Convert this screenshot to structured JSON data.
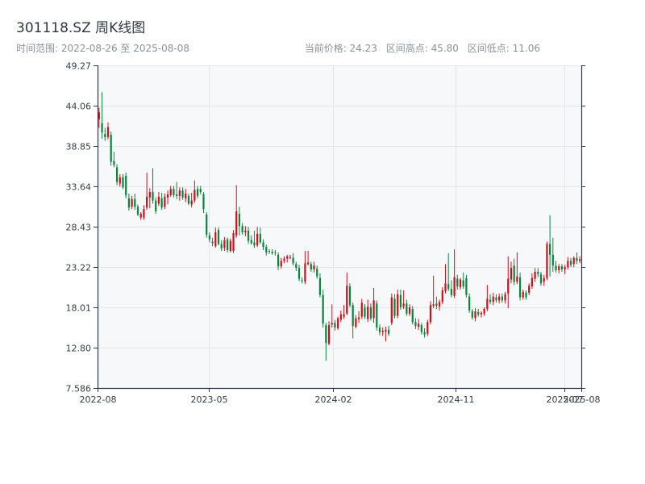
{
  "header": {
    "title": "301118.SZ 周K线图",
    "date_range": "时间范围: 2022-08-26 至 2025-08-08",
    "current_price": "当前价格: 24.23",
    "range_high": "区间高点: 45.80",
    "range_low": "区间低点: 11.06"
  },
  "colors": {
    "up": "#d10f1a",
    "down": "#07873c",
    "plot_bg": "#f7f8fa",
    "grid": "#e3e6ea",
    "axis": "#2b3a4a"
  },
  "chart_data": {
    "type": "candlestick",
    "title": "301118.SZ 周K线图",
    "x_range": [
      "2022-08-26",
      "2025-08-08"
    ],
    "ylim": [
      7.586,
      49.27
    ],
    "y_ticks": [
      "49.27",
      "44.06",
      "38.85",
      "33.64",
      "28.43",
      "23.22",
      "18.01",
      "12.80",
      "7.586"
    ],
    "y_tick_values": [
      49.27,
      44.06,
      38.85,
      33.64,
      28.43,
      23.22,
      18.01,
      12.8,
      7.586
    ],
    "x_ticks": [
      {
        "label": "2022-08",
        "date": "2022-08-26"
      },
      {
        "label": "2023-05",
        "date": "2023-05-01"
      },
      {
        "label": "2024-02",
        "date": "2024-02-01"
      },
      {
        "label": "2024-11",
        "date": "2024-11-01"
      },
      {
        "label": "2025-07",
        "date": "2025-07-01"
      },
      {
        "label": "2025-08",
        "date": "2025-08-08"
      }
    ],
    "grid": true,
    "weeks": [
      {
        "o": 42.3,
        "h": 43.8,
        "l": 41.2,
        "c": 43.2
      },
      {
        "o": 41.8,
        "h": 45.8,
        "l": 39.8,
        "c": 40.6
      },
      {
        "o": 40.4,
        "h": 41.2,
        "l": 39.5,
        "c": 40.0
      },
      {
        "o": 40.0,
        "h": 41.9,
        "l": 39.7,
        "c": 41.3
      },
      {
        "o": 40.3,
        "h": 40.7,
        "l": 36.3,
        "c": 36.8
      },
      {
        "o": 36.9,
        "h": 38.1,
        "l": 36.1,
        "c": 36.4
      },
      {
        "o": 36.1,
        "h": 36.5,
        "l": 33.8,
        "c": 34.2
      },
      {
        "o": 34.0,
        "h": 35.2,
        "l": 33.6,
        "c": 34.8
      },
      {
        "o": 34.8,
        "h": 35.2,
        "l": 33.3,
        "c": 33.5
      },
      {
        "o": 35.0,
        "h": 35.4,
        "l": 32.1,
        "c": 32.5
      },
      {
        "o": 32.1,
        "h": 32.7,
        "l": 30.5,
        "c": 30.9
      },
      {
        "o": 31.0,
        "h": 32.4,
        "l": 30.7,
        "c": 32.0
      },
      {
        "o": 32.0,
        "h": 32.7,
        "l": 30.6,
        "c": 31.0
      },
      {
        "o": 31.0,
        "h": 31.3,
        "l": 29.8,
        "c": 30.0
      },
      {
        "o": 29.6,
        "h": 30.3,
        "l": 29.3,
        "c": 30.1
      },
      {
        "o": 29.6,
        "h": 31.2,
        "l": 29.3,
        "c": 30.7
      },
      {
        "o": 30.9,
        "h": 35.4,
        "l": 30.6,
        "c": 32.3
      },
      {
        "o": 32.2,
        "h": 33.4,
        "l": 30.8,
        "c": 32.9
      },
      {
        "o": 32.9,
        "h": 36.0,
        "l": 31.4,
        "c": 31.8
      },
      {
        "o": 31.8,
        "h": 32.2,
        "l": 30.1,
        "c": 30.4
      },
      {
        "o": 31.4,
        "h": 32.9,
        "l": 31.1,
        "c": 32.3
      },
      {
        "o": 32.1,
        "h": 32.8,
        "l": 30.6,
        "c": 30.9
      },
      {
        "o": 31.0,
        "h": 32.7,
        "l": 30.7,
        "c": 32.3
      },
      {
        "o": 32.2,
        "h": 33.1,
        "l": 31.3,
        "c": 32.6
      },
      {
        "o": 32.5,
        "h": 33.7,
        "l": 32.3,
        "c": 33.3
      },
      {
        "o": 33.3,
        "h": 33.7,
        "l": 32.2,
        "c": 32.5
      },
      {
        "o": 32.6,
        "h": 34.2,
        "l": 32.0,
        "c": 32.4
      },
      {
        "o": 32.4,
        "h": 33.5,
        "l": 31.8,
        "c": 33.1
      },
      {
        "o": 33.1,
        "h": 33.5,
        "l": 31.9,
        "c": 32.2
      },
      {
        "o": 32.1,
        "h": 33.3,
        "l": 31.6,
        "c": 32.7
      },
      {
        "o": 32.4,
        "h": 32.7,
        "l": 31.2,
        "c": 31.4
      },
      {
        "o": 31.3,
        "h": 32.8,
        "l": 30.9,
        "c": 31.8
      },
      {
        "o": 31.8,
        "h": 34.4,
        "l": 31.5,
        "c": 33.2
      },
      {
        "o": 33.3,
        "h": 33.7,
        "l": 32.1,
        "c": 32.4
      },
      {
        "o": 33.3,
        "h": 33.7,
        "l": 32.6,
        "c": 32.9
      },
      {
        "o": 32.6,
        "h": 32.9,
        "l": 30.2,
        "c": 30.7
      },
      {
        "o": 30.0,
        "h": 30.3,
        "l": 27.0,
        "c": 27.4
      },
      {
        "o": 27.3,
        "h": 27.7,
        "l": 26.4,
        "c": 26.8
      },
      {
        "o": 26.5,
        "h": 27.0,
        "l": 25.9,
        "c": 26.3
      },
      {
        "o": 25.9,
        "h": 28.3,
        "l": 25.7,
        "c": 27.7
      },
      {
        "o": 28.0,
        "h": 28.3,
        "l": 26.0,
        "c": 26.2
      },
      {
        "o": 26.2,
        "h": 26.7,
        "l": 25.3,
        "c": 25.6
      },
      {
        "o": 25.7,
        "h": 27.1,
        "l": 25.3,
        "c": 26.7
      },
      {
        "o": 26.8,
        "h": 27.0,
        "l": 25.1,
        "c": 25.4
      },
      {
        "o": 25.3,
        "h": 26.9,
        "l": 25.1,
        "c": 26.6
      },
      {
        "o": 25.3,
        "h": 28.0,
        "l": 25.0,
        "c": 27.6
      },
      {
        "o": 27.3,
        "h": 33.8,
        "l": 27.0,
        "c": 30.4
      },
      {
        "o": 30.1,
        "h": 31.0,
        "l": 27.3,
        "c": 28.5
      },
      {
        "o": 28.5,
        "h": 28.9,
        "l": 27.4,
        "c": 27.7
      },
      {
        "o": 27.7,
        "h": 28.5,
        "l": 27.2,
        "c": 27.9
      },
      {
        "o": 27.9,
        "h": 28.4,
        "l": 26.2,
        "c": 26.6
      },
      {
        "o": 26.7,
        "h": 27.3,
        "l": 26.1,
        "c": 26.3
      },
      {
        "o": 26.4,
        "h": 27.9,
        "l": 25.7,
        "c": 26.0
      },
      {
        "o": 26.0,
        "h": 28.4,
        "l": 25.8,
        "c": 27.5
      },
      {
        "o": 27.5,
        "h": 28.3,
        "l": 26.2,
        "c": 26.4
      },
      {
        "o": 26.4,
        "h": 26.8,
        "l": 25.4,
        "c": 25.8
      },
      {
        "o": 25.8,
        "h": 26.1,
        "l": 24.7,
        "c": 25.1
      },
      {
        "o": 25.3,
        "h": 25.5,
        "l": 24.9,
        "c": 25.2
      },
      {
        "o": 25.2,
        "h": 25.5,
        "l": 24.8,
        "c": 25.0
      },
      {
        "o": 25.1,
        "h": 25.4,
        "l": 24.7,
        "c": 25.0
      },
      {
        "o": 24.8,
        "h": 25.1,
        "l": 22.8,
        "c": 23.3
      },
      {
        "o": 23.3,
        "h": 24.4,
        "l": 23.0,
        "c": 24.0
      },
      {
        "o": 24.0,
        "h": 24.6,
        "l": 23.7,
        "c": 24.3
      },
      {
        "o": 24.3,
        "h": 24.8,
        "l": 23.8,
        "c": 24.6
      },
      {
        "o": 24.5,
        "h": 24.8,
        "l": 24.2,
        "c": 24.5
      },
      {
        "o": 24.4,
        "h": 25.0,
        "l": 23.4,
        "c": 23.7
      },
      {
        "o": 23.6,
        "h": 23.9,
        "l": 22.7,
        "c": 23.1
      },
      {
        "o": 23.1,
        "h": 23.5,
        "l": 21.4,
        "c": 21.7
      },
      {
        "o": 21.5,
        "h": 21.9,
        "l": 21.1,
        "c": 21.4
      },
      {
        "o": 21.3,
        "h": 25.3,
        "l": 21.0,
        "c": 23.7
      },
      {
        "o": 23.6,
        "h": 25.3,
        "l": 23.4,
        "c": 23.8
      },
      {
        "o": 23.6,
        "h": 23.9,
        "l": 22.6,
        "c": 22.9
      },
      {
        "o": 22.9,
        "h": 23.9,
        "l": 22.5,
        "c": 23.4
      },
      {
        "o": 23.0,
        "h": 23.4,
        "l": 21.7,
        "c": 22.0
      },
      {
        "o": 21.8,
        "h": 22.4,
        "l": 19.3,
        "c": 19.6
      },
      {
        "o": 19.6,
        "h": 20.3,
        "l": 15.4,
        "c": 15.9
      },
      {
        "o": 15.7,
        "h": 16.0,
        "l": 11.1,
        "c": 13.4
      },
      {
        "o": 13.3,
        "h": 16.2,
        "l": 13.1,
        "c": 15.7
      },
      {
        "o": 15.8,
        "h": 18.4,
        "l": 15.4,
        "c": 16.0
      },
      {
        "o": 16.0,
        "h": 16.4,
        "l": 15.0,
        "c": 15.4
      },
      {
        "o": 15.3,
        "h": 16.8,
        "l": 15.1,
        "c": 16.6
      },
      {
        "o": 16.4,
        "h": 17.6,
        "l": 16.1,
        "c": 17.1
      },
      {
        "o": 16.8,
        "h": 18.3,
        "l": 16.5,
        "c": 17.1
      },
      {
        "o": 17.2,
        "h": 22.5,
        "l": 17.0,
        "c": 20.8
      },
      {
        "o": 20.7,
        "h": 21.1,
        "l": 18.0,
        "c": 18.3
      },
      {
        "o": 18.3,
        "h": 18.6,
        "l": 14.0,
        "c": 15.6
      },
      {
        "o": 15.5,
        "h": 17.0,
        "l": 15.3,
        "c": 16.6
      },
      {
        "o": 16.5,
        "h": 17.5,
        "l": 16.0,
        "c": 16.7
      },
      {
        "o": 16.8,
        "h": 19.1,
        "l": 16.5,
        "c": 18.6
      },
      {
        "o": 18.0,
        "h": 18.4,
        "l": 16.5,
        "c": 16.8
      },
      {
        "o": 16.5,
        "h": 19.0,
        "l": 16.1,
        "c": 18.1
      },
      {
        "o": 18.0,
        "h": 18.5,
        "l": 16.3,
        "c": 16.6
      },
      {
        "o": 16.6,
        "h": 20.5,
        "l": 16.0,
        "c": 18.9
      },
      {
        "o": 18.5,
        "h": 18.9,
        "l": 15.0,
        "c": 15.4
      },
      {
        "o": 15.4,
        "h": 15.8,
        "l": 14.4,
        "c": 14.8
      },
      {
        "o": 14.8,
        "h": 15.4,
        "l": 14.3,
        "c": 15.0
      },
      {
        "o": 14.9,
        "h": 15.5,
        "l": 13.6,
        "c": 15.1
      },
      {
        "o": 15.1,
        "h": 15.6,
        "l": 14.3,
        "c": 14.6
      },
      {
        "o": 16.0,
        "h": 19.8,
        "l": 15.7,
        "c": 19.3
      },
      {
        "o": 19.1,
        "h": 19.7,
        "l": 16.6,
        "c": 16.9
      },
      {
        "o": 16.9,
        "h": 20.3,
        "l": 16.6,
        "c": 19.7
      },
      {
        "o": 19.6,
        "h": 20.3,
        "l": 17.7,
        "c": 18.0
      },
      {
        "o": 18.1,
        "h": 20.2,
        "l": 17.8,
        "c": 18.5
      },
      {
        "o": 18.5,
        "h": 19.0,
        "l": 16.9,
        "c": 17.2
      },
      {
        "o": 17.2,
        "h": 18.4,
        "l": 16.9,
        "c": 18.0
      },
      {
        "o": 17.8,
        "h": 18.2,
        "l": 15.8,
        "c": 16.1
      },
      {
        "o": 16.1,
        "h": 16.6,
        "l": 15.2,
        "c": 15.6
      },
      {
        "o": 15.5,
        "h": 16.5,
        "l": 15.1,
        "c": 15.9
      },
      {
        "o": 15.7,
        "h": 16.0,
        "l": 14.5,
        "c": 14.8
      },
      {
        "o": 14.8,
        "h": 15.3,
        "l": 14.1,
        "c": 14.5
      },
      {
        "o": 14.6,
        "h": 16.4,
        "l": 14.3,
        "c": 16.1
      },
      {
        "o": 16.1,
        "h": 18.8,
        "l": 15.8,
        "c": 18.3
      },
      {
        "o": 18.2,
        "h": 22.1,
        "l": 17.9,
        "c": 18.4
      },
      {
        "o": 18.5,
        "h": 19.4,
        "l": 17.8,
        "c": 18.2
      },
      {
        "o": 18.1,
        "h": 19.0,
        "l": 17.6,
        "c": 18.7
      },
      {
        "o": 18.7,
        "h": 20.6,
        "l": 18.4,
        "c": 20.2
      },
      {
        "o": 20.1,
        "h": 23.6,
        "l": 19.8,
        "c": 21.1
      },
      {
        "o": 21.0,
        "h": 25.0,
        "l": 20.1,
        "c": 20.4
      },
      {
        "o": 20.4,
        "h": 21.5,
        "l": 19.3,
        "c": 19.6
      },
      {
        "o": 19.5,
        "h": 25.5,
        "l": 19.2,
        "c": 21.9
      },
      {
        "o": 21.7,
        "h": 22.2,
        "l": 20.3,
        "c": 20.7
      },
      {
        "o": 20.6,
        "h": 21.8,
        "l": 20.3,
        "c": 21.6
      },
      {
        "o": 21.5,
        "h": 22.5,
        "l": 20.4,
        "c": 20.7
      },
      {
        "o": 21.8,
        "h": 22.2,
        "l": 19.3,
        "c": 19.6
      },
      {
        "o": 19.4,
        "h": 19.8,
        "l": 17.3,
        "c": 17.6
      },
      {
        "o": 17.5,
        "h": 17.8,
        "l": 16.4,
        "c": 16.7
      },
      {
        "o": 16.6,
        "h": 17.9,
        "l": 16.2,
        "c": 17.5
      },
      {
        "o": 17.4,
        "h": 17.8,
        "l": 16.8,
        "c": 17.1
      },
      {
        "o": 17.1,
        "h": 17.5,
        "l": 16.7,
        "c": 17.3
      },
      {
        "o": 17.2,
        "h": 18.0,
        "l": 16.9,
        "c": 17.8
      },
      {
        "o": 17.8,
        "h": 20.9,
        "l": 17.5,
        "c": 19.1
      },
      {
        "o": 19.0,
        "h": 19.7,
        "l": 18.4,
        "c": 18.7
      },
      {
        "o": 18.7,
        "h": 19.9,
        "l": 18.3,
        "c": 19.4
      },
      {
        "o": 19.3,
        "h": 19.7,
        "l": 18.6,
        "c": 18.9
      },
      {
        "o": 18.9,
        "h": 19.8,
        "l": 18.5,
        "c": 19.4
      },
      {
        "o": 19.4,
        "h": 19.8,
        "l": 18.6,
        "c": 18.9
      },
      {
        "o": 18.9,
        "h": 20.0,
        "l": 18.5,
        "c": 19.7
      },
      {
        "o": 19.8,
        "h": 24.6,
        "l": 17.9,
        "c": 21.7
      },
      {
        "o": 21.6,
        "h": 23.9,
        "l": 21.1,
        "c": 23.1
      },
      {
        "o": 23.4,
        "h": 24.3,
        "l": 20.9,
        "c": 21.3
      },
      {
        "o": 21.3,
        "h": 25.1,
        "l": 21.0,
        "c": 22.0
      },
      {
        "o": 21.9,
        "h": 22.5,
        "l": 18.9,
        "c": 19.3
      },
      {
        "o": 19.3,
        "h": 20.3,
        "l": 19.0,
        "c": 20.0
      },
      {
        "o": 19.9,
        "h": 20.2,
        "l": 19.0,
        "c": 19.3
      },
      {
        "o": 19.9,
        "h": 21.1,
        "l": 19.6,
        "c": 20.8
      },
      {
        "o": 20.7,
        "h": 22.4,
        "l": 20.4,
        "c": 21.8
      },
      {
        "o": 21.7,
        "h": 23.1,
        "l": 21.3,
        "c": 22.6
      },
      {
        "o": 22.6,
        "h": 23.1,
        "l": 21.9,
        "c": 22.3
      },
      {
        "o": 22.3,
        "h": 22.6,
        "l": 20.8,
        "c": 21.1
      },
      {
        "o": 21.3,
        "h": 22.2,
        "l": 20.8,
        "c": 21.8
      },
      {
        "o": 21.8,
        "h": 26.5,
        "l": 21.5,
        "c": 26.2
      },
      {
        "o": 26.2,
        "h": 29.9,
        "l": 22.0,
        "c": 24.8
      },
      {
        "o": 24.8,
        "h": 27.0,
        "l": 22.6,
        "c": 23.4
      },
      {
        "o": 23.4,
        "h": 24.0,
        "l": 22.5,
        "c": 22.8
      },
      {
        "o": 22.8,
        "h": 23.6,
        "l": 22.4,
        "c": 23.3
      },
      {
        "o": 23.3,
        "h": 23.6,
        "l": 22.6,
        "c": 22.9
      },
      {
        "o": 22.9,
        "h": 23.5,
        "l": 22.3,
        "c": 23.2
      },
      {
        "o": 23.2,
        "h": 24.5,
        "l": 22.9,
        "c": 24.0
      },
      {
        "o": 24.0,
        "h": 24.4,
        "l": 23.2,
        "c": 23.5
      },
      {
        "o": 23.6,
        "h": 24.6,
        "l": 23.2,
        "c": 24.4
      },
      {
        "o": 24.4,
        "h": 25.1,
        "l": 23.6,
        "c": 24.0
      },
      {
        "o": 24.0,
        "h": 24.6,
        "l": 23.7,
        "c": 24.23
      }
    ]
  }
}
